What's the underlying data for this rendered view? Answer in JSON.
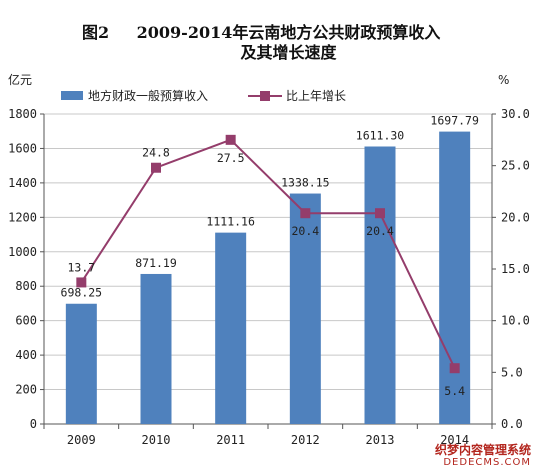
{
  "figure_label": "图2",
  "title_line1": "2009-2014年云南地方公共财政预算收入",
  "title_line2": "及其增长速度",
  "watermark_line1": "织梦内容管理系统",
  "watermark_line2": "DEDECMS.COM",
  "colors": {
    "bar": "#4f81bd",
    "line": "#943d6b",
    "axis": "#555555",
    "grid": "#c8c8c8"
  },
  "chart_data": {
    "type": "bar",
    "categories": [
      "2009",
      "2010",
      "2011",
      "2012",
      "2013",
      "2014"
    ],
    "left_axis_unit": "亿元",
    "right_axis_unit": "%",
    "ylim": [
      0,
      1800
    ],
    "y2lim": [
      0,
      30
    ],
    "yticks": [
      "0",
      "200",
      "400",
      "600",
      "800",
      "1000",
      "1200",
      "1400",
      "1600",
      "1800"
    ],
    "y2ticks": [
      "0.0",
      "5.0",
      "10.0",
      "15.0",
      "20.0",
      "25.0",
      "30.0"
    ],
    "grid": true,
    "legend_position": "top-left",
    "series": [
      {
        "name": "地方财政一般预算收入",
        "type": "bar",
        "axis": "left",
        "values": [
          698.25,
          871.19,
          1111.16,
          1338.15,
          1611.3,
          1697.79
        ],
        "labels": [
          "698.25",
          "871.19",
          "1111.16",
          "1338.15",
          "1611.30",
          "1697.79"
        ]
      },
      {
        "name": "比上年增长",
        "type": "line",
        "axis": "right",
        "values": [
          13.7,
          24.8,
          27.5,
          20.4,
          20.4,
          5.4
        ],
        "labels": [
          "13.7",
          "24.8",
          "27.5",
          "20.4",
          "20.4",
          "5.4"
        ]
      }
    ]
  }
}
